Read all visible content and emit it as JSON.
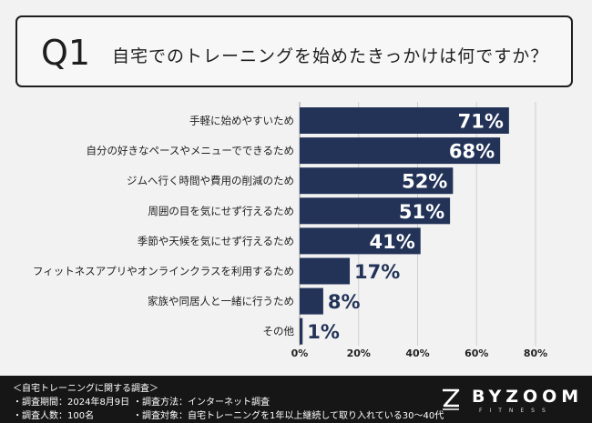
{
  "header": {
    "q": "Q1",
    "question": "自宅でのトレーニングを始めたきっかけは何ですか？"
  },
  "chart_data": {
    "type": "bar",
    "orientation": "horizontal",
    "categories": [
      "手軽に始めやすいため",
      "自分の好きなペースやメニューでできるため",
      "ジムへ行く時間や費用の削減のため",
      "周囲の目を気にせず行えるため",
      "季節や天候を気にせず行えるため",
      "フィットネスアプリやオンラインクラスを利用するため",
      "家族や同居人と一緒に行うため",
      "その他"
    ],
    "values": [
      71,
      68,
      52,
      51,
      41,
      17,
      8,
      1
    ],
    "value_labels": [
      "71%",
      "68%",
      "52%",
      "51%",
      "41%",
      "17%",
      "8%",
      "1%"
    ],
    "xticks": [
      "0%",
      "20%",
      "40%",
      "60%",
      "80%"
    ],
    "xlim": [
      0,
      80
    ],
    "grid": true,
    "bar_color": "#233358"
  },
  "footer": {
    "title": "＜自宅トレーニングに関する調査＞",
    "period": "・調査期間：2024年8月9日",
    "method": "・調査方法：インターネット調査",
    "count": "・調査人数：100名",
    "target": "・調査対象：自宅トレーニングを1年以上継続して取り入れている30〜40代",
    "brand": "BYZOOM",
    "brand_sub": "FITNESS"
  }
}
